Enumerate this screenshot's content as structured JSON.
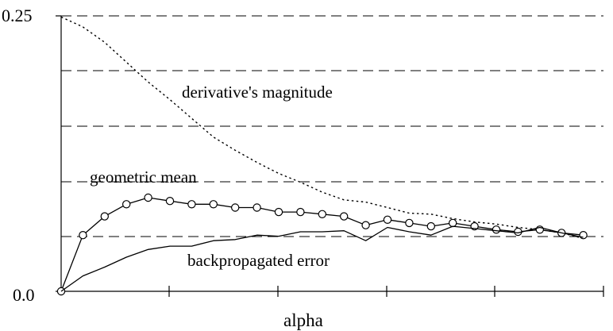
{
  "chart_data": {
    "type": "line",
    "xlabel": "alpha",
    "ylabel": "",
    "ylim": [
      0.0,
      0.25
    ],
    "y_tick_labels": [
      "0.0",
      "0.25"
    ],
    "grid": "horizontal dashed",
    "annotations": {
      "derivative": "derivative's magnitude",
      "geometric": "geometric mean",
      "backprop": "backpropagated error"
    },
    "series": [
      {
        "name": "derivative's magnitude",
        "style": "dotted",
        "x": [
          0,
          1,
          2,
          3,
          4,
          5,
          6,
          7,
          8,
          9,
          10,
          11,
          12,
          13,
          14,
          15,
          16,
          17,
          18,
          19,
          20,
          21,
          22,
          23,
          24
        ],
        "values": [
          0.249,
          0.24,
          0.226,
          0.208,
          0.19,
          0.174,
          0.157,
          0.14,
          0.128,
          0.117,
          0.107,
          0.099,
          0.09,
          0.083,
          0.081,
          0.076,
          0.071,
          0.07,
          0.066,
          0.063,
          0.061,
          0.058,
          0.056,
          0.053,
          0.048
        ]
      },
      {
        "name": "geometric mean",
        "style": "solid-circles",
        "x": [
          0,
          1,
          2,
          3,
          4,
          5,
          6,
          7,
          8,
          9,
          10,
          11,
          12,
          13,
          14,
          15,
          16,
          17,
          18,
          19,
          20,
          21,
          22,
          23,
          24
        ],
        "values": [
          0.0,
          0.051,
          0.068,
          0.079,
          0.085,
          0.082,
          0.079,
          0.079,
          0.076,
          0.076,
          0.072,
          0.072,
          0.07,
          0.068,
          0.06,
          0.065,
          0.062,
          0.059,
          0.062,
          0.059,
          0.056,
          0.054,
          0.056,
          0.053,
          0.051
        ]
      },
      {
        "name": "backpropagated error",
        "style": "solid",
        "x": [
          0,
          1,
          2,
          3,
          4,
          5,
          6,
          7,
          8,
          9,
          10,
          11,
          12,
          13,
          14,
          15,
          16,
          17,
          18,
          19,
          20,
          21,
          22,
          23,
          24
        ],
        "values": [
          0.0,
          0.014,
          0.022,
          0.031,
          0.038,
          0.041,
          0.041,
          0.046,
          0.047,
          0.051,
          0.05,
          0.054,
          0.054,
          0.055,
          0.046,
          0.058,
          0.054,
          0.051,
          0.059,
          0.057,
          0.055,
          0.053,
          0.058,
          0.053,
          0.049
        ]
      }
    ]
  }
}
